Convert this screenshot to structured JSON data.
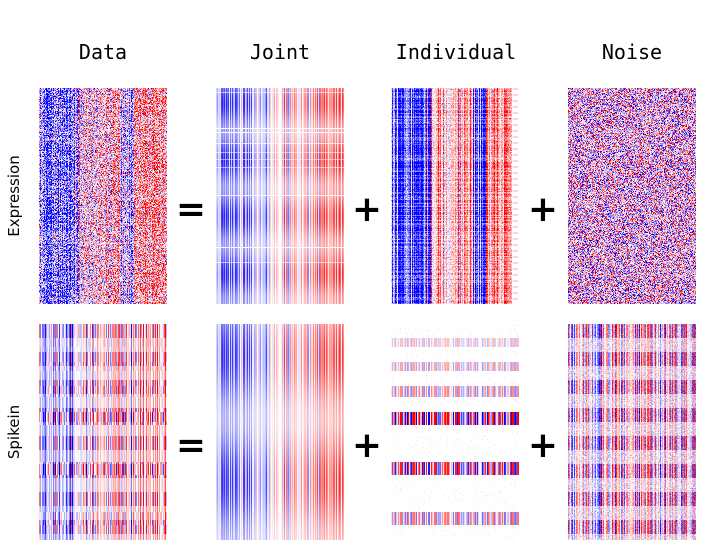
{
  "chart_data": {
    "type": "heatmap",
    "columns": [
      "Data",
      "Joint",
      "Individual",
      "Noise"
    ],
    "rows": [
      "Expression",
      "Spikein"
    ],
    "operators": {
      "equals": "=",
      "plus": "+"
    },
    "colormap": {
      "negative": "#0000ff",
      "zero": "#ffffff",
      "positive": "#ff0000"
    }
  }
}
